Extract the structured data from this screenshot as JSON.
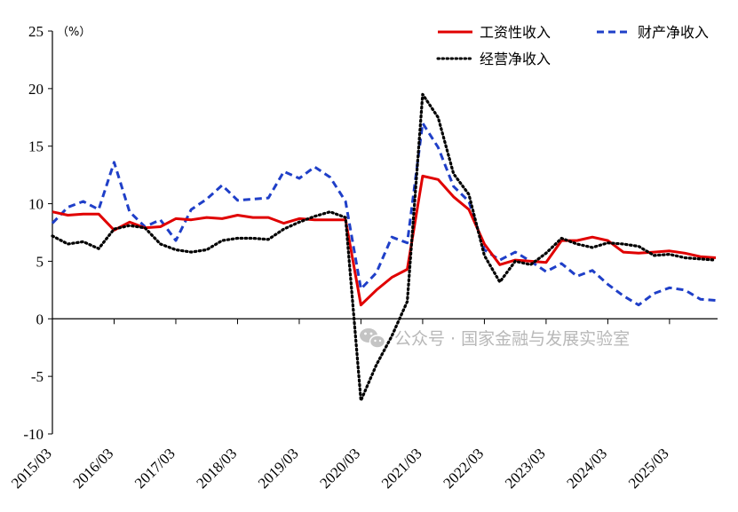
{
  "watermark": {
    "icon": "wechat-icon",
    "text": "公众号 · 国家金融与发展实验室",
    "color": "#b8b8b8"
  },
  "chart_data": {
    "type": "line",
    "title": "",
    "xlabel": "",
    "ylabel": "",
    "unit_label": "（%）",
    "ylim": [
      -10,
      25
    ],
    "yticks": [
      -10,
      -5,
      0,
      5,
      10,
      15,
      20,
      25
    ],
    "ytick_labels": [
      "-10",
      "-5",
      "0",
      "5",
      "10",
      "15",
      "20",
      "25"
    ],
    "grid": false,
    "legend_position": "top-right",
    "x_tick_labels": [
      "2015/03",
      "2016/03",
      "2017/03",
      "2018/03",
      "2019/03",
      "2020/03",
      "2021/03",
      "2022/03",
      "2023/03",
      "2024/03",
      "2025/03"
    ],
    "x": [
      "2015/03",
      "2015/06",
      "2015/09",
      "2015/12",
      "2016/03",
      "2016/06",
      "2016/09",
      "2016/12",
      "2017/03",
      "2017/06",
      "2017/09",
      "2017/12",
      "2018/03",
      "2018/06",
      "2018/09",
      "2018/12",
      "2019/03",
      "2019/06",
      "2019/09",
      "2019/12",
      "2020/03",
      "2020/06",
      "2020/09",
      "2020/12",
      "2021/03",
      "2021/06",
      "2021/09",
      "2021/12",
      "2022/03",
      "2022/06",
      "2022/09",
      "2022/12",
      "2023/03",
      "2023/06",
      "2023/09",
      "2023/12",
      "2024/03",
      "2024/06",
      "2024/09",
      "2024/12",
      "2025/03",
      "2025/06",
      "2025/09",
      "2025/12"
    ],
    "series": [
      {
        "name": "工资性收入",
        "color": "#e00000",
        "style": "solid",
        "values": [
          9.3,
          9.0,
          9.1,
          9.1,
          7.7,
          8.4,
          7.9,
          8.0,
          8.7,
          8.6,
          8.8,
          8.7,
          9.0,
          8.8,
          8.8,
          8.3,
          8.7,
          8.6,
          8.6,
          8.6,
          1.2,
          2.5,
          3.6,
          4.3,
          12.4,
          12.1,
          10.6,
          9.5,
          6.5,
          4.7,
          5.1,
          5.0,
          4.9,
          6.8,
          6.8,
          7.1,
          6.8,
          5.8,
          5.7,
          5.8,
          5.9,
          5.7,
          5.4,
          5.3
        ]
      },
      {
        "name": "财产净收入",
        "color": "#1f3fc8",
        "style": "dashed",
        "values": [
          8.3,
          9.7,
          10.2,
          9.5,
          13.6,
          9.3,
          8.0,
          8.6,
          6.8,
          9.5,
          10.4,
          11.6,
          10.3,
          10.4,
          10.5,
          12.8,
          12.2,
          13.2,
          12.3,
          10.2,
          2.6,
          4.0,
          7.1,
          6.6,
          17.0,
          14.9,
          11.5,
          10.2,
          6.0,
          5.1,
          5.8,
          5.0,
          4.1,
          4.8,
          3.7,
          4.2,
          3.0,
          2.0,
          1.2,
          2.2,
          2.7,
          2.5,
          1.7,
          1.6
        ]
      },
      {
        "name": "经营净收入",
        "color": "#000000",
        "style": "dotted",
        "values": [
          7.2,
          6.5,
          6.7,
          6.1,
          7.8,
          8.1,
          7.9,
          6.5,
          6.0,
          5.8,
          6.0,
          6.8,
          7.0,
          7.0,
          6.9,
          7.8,
          8.4,
          8.9,
          9.3,
          8.8,
          -7.1,
          -4.0,
          -1.5,
          1.5,
          19.5,
          17.5,
          12.6,
          10.8,
          5.5,
          3.2,
          5.0,
          4.7,
          5.7,
          7.0,
          6.5,
          6.2,
          6.6,
          6.5,
          6.3,
          5.5,
          5.6,
          5.3,
          5.2,
          5.1
        ]
      }
    ]
  }
}
